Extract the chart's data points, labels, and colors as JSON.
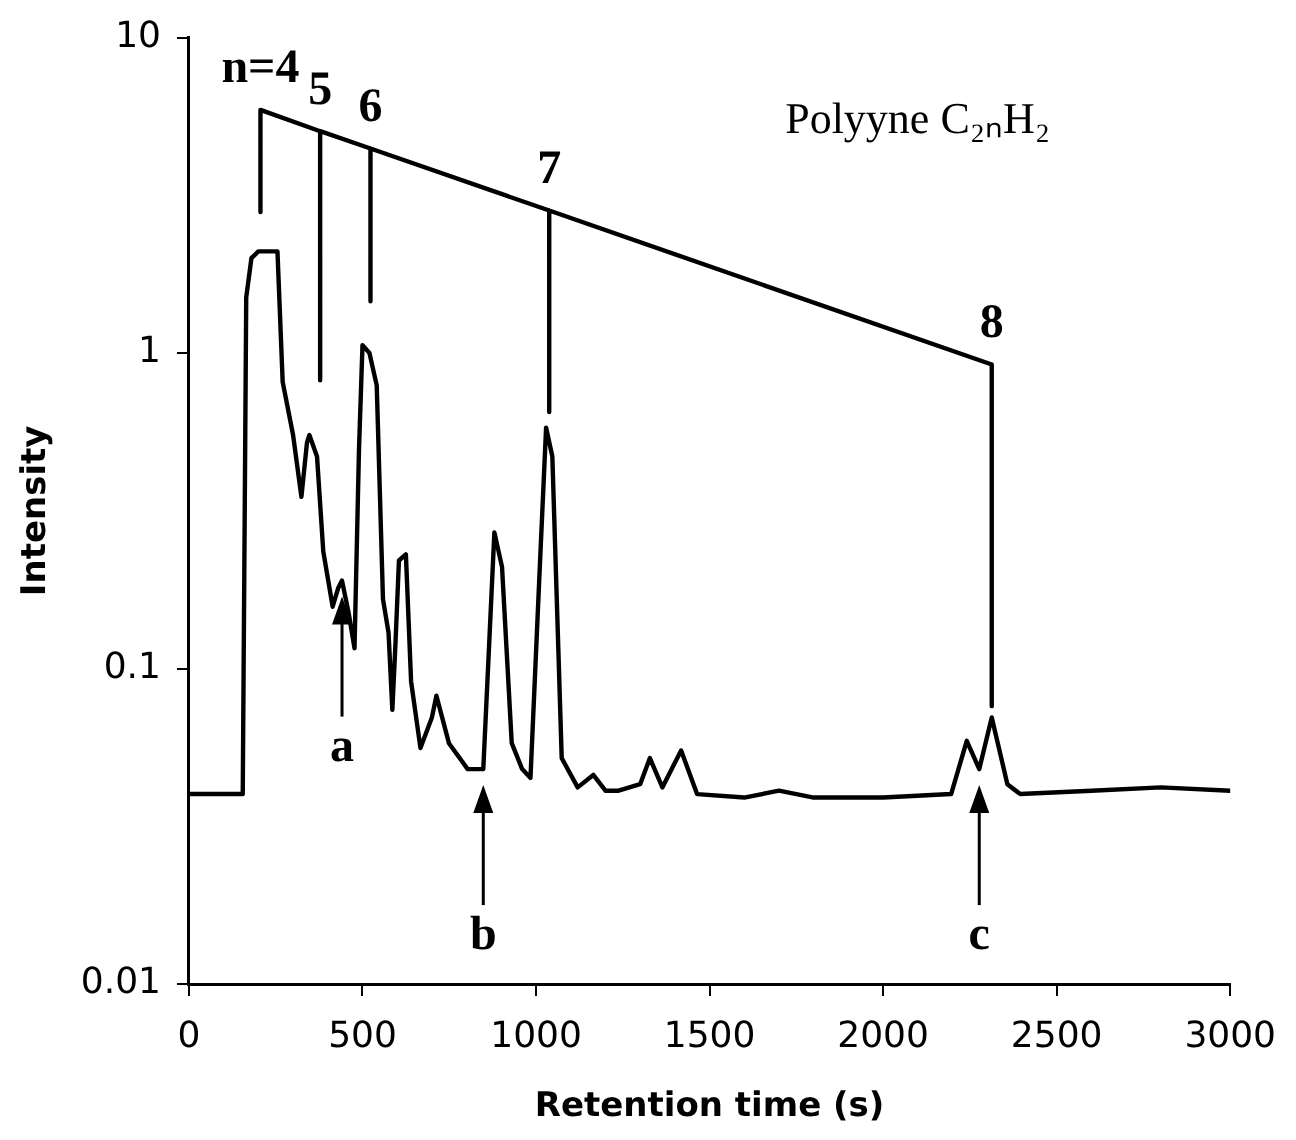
{
  "chart_data": {
    "type": "line",
    "xlabel": "Retention time (s)",
    "ylabel": "Intensity",
    "xlim": [
      0,
      3000
    ],
    "xticks": [
      0,
      500,
      1000,
      1500,
      2000,
      2500,
      3000
    ],
    "ylim": [
      0.01,
      10
    ],
    "yticks": [
      0.01,
      0.1,
      1,
      10
    ],
    "log": "y",
    "grid": false,
    "legend": false,
    "marker": "none",
    "line_style": "solid",
    "series": [
      {
        "color": "#000000",
        "x": [
          0,
          100,
          155,
          165,
          180,
          200,
          255,
          270,
          300,
          324,
          340,
          347,
          369,
          387,
          414,
          430,
          441,
          460,
          477,
          490,
          500,
          520,
          541,
          559,
          575,
          586,
          595,
          605,
          625,
          640,
          667,
          700,
          713,
          749,
          803,
          848,
          865,
          880,
          902,
          930,
          960,
          984,
          1010,
          1029,
          1047,
          1074,
          1120,
          1165,
          1200,
          1238,
          1300,
          1328,
          1364,
          1418,
          1464,
          1600,
          1700,
          1800,
          2000,
          2196,
          2241,
          2277,
          2313,
          2358,
          2395,
          2600,
          2800,
          3000
        ],
        "values": [
          0.04,
          0.04,
          0.04,
          1.5,
          2.0,
          2.1,
          2.1,
          0.81,
          0.55,
          0.35,
          0.52,
          0.55,
          0.47,
          0.235,
          0.157,
          0.18,
          0.19,
          0.15,
          0.116,
          0.5,
          1.06,
          1.0,
          0.79,
          0.166,
          0.13,
          0.074,
          0.12,
          0.22,
          0.23,
          0.091,
          0.056,
          0.07,
          0.082,
          0.058,
          0.048,
          0.048,
          0.12,
          0.27,
          0.21,
          0.058,
          0.048,
          0.045,
          0.2,
          0.58,
          0.47,
          0.052,
          0.042,
          0.046,
          0.041,
          0.041,
          0.043,
          0.052,
          0.042,
          0.055,
          0.04,
          0.039,
          0.041,
          0.039,
          0.039,
          0.04,
          0.059,
          0.048,
          0.07,
          0.043,
          0.04,
          0.041,
          0.042,
          0.041
        ]
      },
      {
        "color": "#000000",
        "x": [
          206,
          206,
          378,
          378,
          378,
          523,
          523,
          523,
          1038,
          1038,
          1038,
          2313,
          2313
        ],
        "values": [
          2.8,
          5.9,
          5.05,
          0.82,
          5.05,
          4.45,
          1.46,
          4.45,
          2.83,
          0.65,
          2.83,
          0.92,
          0.076
        ]
      }
    ],
    "annotations": [
      "Polyyne C₂ₙH₂",
      {
        "text": "n=4",
        "x": 206,
        "y": 5.9
      },
      {
        "text": "5",
        "x": 378,
        "y": 5.05
      },
      {
        "text": "6",
        "x": 523,
        "y": 4.45
      },
      {
        "text": "7",
        "x": 1038,
        "y": 2.83
      },
      {
        "text": "8",
        "x": 2313,
        "y": 0.92
      },
      {
        "text": "a",
        "x": 441,
        "y": 0.19
      },
      {
        "text": "b",
        "x": 848,
        "y": 0.048
      },
      {
        "text": "c",
        "x": 2277,
        "y": 0.048
      }
    ]
  }
}
